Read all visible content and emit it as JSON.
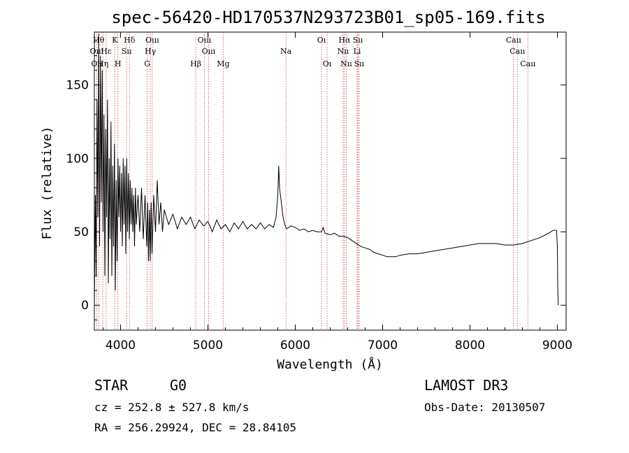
{
  "chart_data": {
    "type": "line",
    "title": "spec-56420-HD170537N293723B01_sp05-169.fits",
    "xlabel": "Wavelength (Å)",
    "ylabel": "Flux (relative)",
    "xlim": [
      3700,
      9100
    ],
    "ylim": [
      -17,
      186
    ],
    "xticks": [
      4000,
      5000,
      6000,
      7000,
      8000,
      9000
    ],
    "yticks": [
      0,
      50,
      100,
      150
    ],
    "grid": false,
    "series": [
      {
        "name": "flux",
        "points": [
          [
            3700,
            0
          ],
          [
            3712,
            75
          ],
          [
            3720,
            20
          ],
          [
            3730,
            140
          ],
          [
            3740,
            60
          ],
          [
            3750,
            185
          ],
          [
            3760,
            40
          ],
          [
            3770,
            170
          ],
          [
            3780,
            70
          ],
          [
            3790,
            160
          ],
          [
            3800,
            50
          ],
          [
            3810,
            130
          ],
          [
            3820,
            20
          ],
          [
            3830,
            120
          ],
          [
            3840,
            60
          ],
          [
            3850,
            140
          ],
          [
            3860,
            15
          ],
          [
            3870,
            100
          ],
          [
            3880,
            45
          ],
          [
            3890,
            125
          ],
          [
            3900,
            20
          ],
          [
            3910,
            95
          ],
          [
            3920,
            40
          ],
          [
            3930,
            110
          ],
          [
            3940,
            10
          ],
          [
            3950,
            85
          ],
          [
            3960,
            30
          ],
          [
            3970,
            100
          ],
          [
            3980,
            60
          ],
          [
            3990,
            95
          ],
          [
            4000,
            50
          ],
          [
            4010,
            90
          ],
          [
            4020,
            40
          ],
          [
            4030,
            100
          ],
          [
            4040,
            55
          ],
          [
            4050,
            95
          ],
          [
            4060,
            35
          ],
          [
            4070,
            100
          ],
          [
            4080,
            50
          ],
          [
            4090,
            90
          ],
          [
            4100,
            45
          ],
          [
            4110,
            85
          ],
          [
            4120,
            55
          ],
          [
            4130,
            80
          ],
          [
            4140,
            50
          ],
          [
            4150,
            75
          ],
          [
            4160,
            40
          ],
          [
            4170,
            80
          ],
          [
            4180,
            55
          ],
          [
            4200,
            75
          ],
          [
            4220,
            50
          ],
          [
            4240,
            80
          ],
          [
            4260,
            45
          ],
          [
            4280,
            75
          ],
          [
            4300,
            40
          ],
          [
            4310,
            70
          ],
          [
            4320,
            30
          ],
          [
            4330,
            65
          ],
          [
            4340,
            30
          ],
          [
            4350,
            70
          ],
          [
            4360,
            35
          ],
          [
            4380,
            75
          ],
          [
            4400,
            50
          ],
          [
            4420,
            85
          ],
          [
            4440,
            55
          ],
          [
            4460,
            70
          ],
          [
            4480,
            50
          ],
          [
            4500,
            65
          ],
          [
            4550,
            55
          ],
          [
            4600,
            62
          ],
          [
            4650,
            52
          ],
          [
            4700,
            60
          ],
          [
            4750,
            55
          ],
          [
            4800,
            60
          ],
          [
            4850,
            52
          ],
          [
            4900,
            58
          ],
          [
            4950,
            54
          ],
          [
            5000,
            57
          ],
          [
            5050,
            50
          ],
          [
            5100,
            58
          ],
          [
            5150,
            52
          ],
          [
            5200,
            55
          ],
          [
            5250,
            50
          ],
          [
            5300,
            56
          ],
          [
            5350,
            52
          ],
          [
            5400,
            57
          ],
          [
            5450,
            52
          ],
          [
            5500,
            55
          ],
          [
            5550,
            52
          ],
          [
            5600,
            56
          ],
          [
            5650,
            52
          ],
          [
            5700,
            55
          ],
          [
            5750,
            53
          ],
          [
            5780,
            60
          ],
          [
            5800,
            75
          ],
          [
            5810,
            95
          ],
          [
            5820,
            80
          ],
          [
            5840,
            70
          ],
          [
            5860,
            60
          ],
          [
            5880,
            55
          ],
          [
            5900,
            52
          ],
          [
            5950,
            54
          ],
          [
            6000,
            53
          ],
          [
            6050,
            51
          ],
          [
            6100,
            52
          ],
          [
            6150,
            50
          ],
          [
            6200,
            51
          ],
          [
            6250,
            50
          ],
          [
            6300,
            50
          ],
          [
            6320,
            53
          ],
          [
            6340,
            49
          ],
          [
            6400,
            48
          ],
          [
            6450,
            49
          ],
          [
            6500,
            47
          ],
          [
            6550,
            47
          ],
          [
            6600,
            46
          ],
          [
            6650,
            44
          ],
          [
            6700,
            42
          ],
          [
            6750,
            40
          ],
          [
            6800,
            39
          ],
          [
            6850,
            38
          ],
          [
            6900,
            36
          ],
          [
            6950,
            35
          ],
          [
            7000,
            34
          ],
          [
            7050,
            33
          ],
          [
            7100,
            33
          ],
          [
            7150,
            33
          ],
          [
            7200,
            34
          ],
          [
            7300,
            35
          ],
          [
            7400,
            35
          ],
          [
            7500,
            36
          ],
          [
            7600,
            37
          ],
          [
            7700,
            38
          ],
          [
            7800,
            39
          ],
          [
            7900,
            40
          ],
          [
            8000,
            41
          ],
          [
            8100,
            42
          ],
          [
            8200,
            42
          ],
          [
            8300,
            42
          ],
          [
            8400,
            41
          ],
          [
            8500,
            41
          ],
          [
            8600,
            42
          ],
          [
            8700,
            44
          ],
          [
            8800,
            46
          ],
          [
            8900,
            49
          ],
          [
            8950,
            51
          ],
          [
            8990,
            51
          ],
          [
            9000,
            40
          ],
          [
            9005,
            10
          ],
          [
            9010,
            0
          ]
        ]
      }
    ],
    "annotations": [
      {
        "label": "Oıı",
        "wavelength": 3727,
        "row": 3
      },
      {
        "label": "Hθ",
        "wavelength": 3750,
        "row": 1
      },
      {
        "label": "Oııı",
        "wavelength": 3727,
        "row": 2
      },
      {
        "label": "Hη",
        "wavelength": 3797,
        "row": 3
      },
      {
        "label": "Hε",
        "wavelength": 3835,
        "row": 2
      },
      {
        "label": "K",
        "wavelength": 3934,
        "row": 1
      },
      {
        "label": "H",
        "wavelength": 3969,
        "row": 3
      },
      {
        "label": "Sıı",
        "wavelength": 4069,
        "row": 2
      },
      {
        "label": "Hδ",
        "wavelength": 4102,
        "row": 1
      },
      {
        "label": "Oııı",
        "wavelength": 4363,
        "row": 1
      },
      {
        "label": "Hγ",
        "wavelength": 4341,
        "row": 2
      },
      {
        "label": "G",
        "wavelength": 4305,
        "row": 3
      },
      {
        "label": "Hβ",
        "wavelength": 4861,
        "row": 3
      },
      {
        "label": "Oııı",
        "wavelength": 4959,
        "row": 1
      },
      {
        "label": "Oııı",
        "wavelength": 5007,
        "row": 2
      },
      {
        "label": "Mg",
        "wavelength": 5175,
        "row": 3
      },
      {
        "label": "Na",
        "wavelength": 5893,
        "row": 2
      },
      {
        "label": "Oı",
        "wavelength": 6300,
        "row": 1
      },
      {
        "label": "Oı",
        "wavelength": 6364,
        "row": 3
      },
      {
        "label": "Hα",
        "wavelength": 6563,
        "row": 1
      },
      {
        "label": "Nıı",
        "wavelength": 6548,
        "row": 2
      },
      {
        "label": "Nıı",
        "wavelength": 6583,
        "row": 3
      },
      {
        "label": "Sıı",
        "wavelength": 6716,
        "row": 1
      },
      {
        "label": "Li",
        "wavelength": 6708,
        "row": 2
      },
      {
        "label": "Sıı",
        "wavelength": 6731,
        "row": 3
      },
      {
        "label": "Caıı",
        "wavelength": 8498,
        "row": 1
      },
      {
        "label": "Caıı",
        "wavelength": 8542,
        "row": 2
      },
      {
        "label": "Caıı",
        "wavelength": 8662,
        "row": 3
      }
    ]
  },
  "info": {
    "object_class": "STAR",
    "subclass": "G0",
    "survey": "LAMOST DR3",
    "cz": "cz = 252.8 ± 527.8 km/s",
    "obs_date": "Obs-Date: 20130507",
    "coords": "RA = 256.29924, DEC =  28.84105"
  },
  "colors": {
    "line_marker": "#c84141",
    "spectrum": "#000000"
  }
}
